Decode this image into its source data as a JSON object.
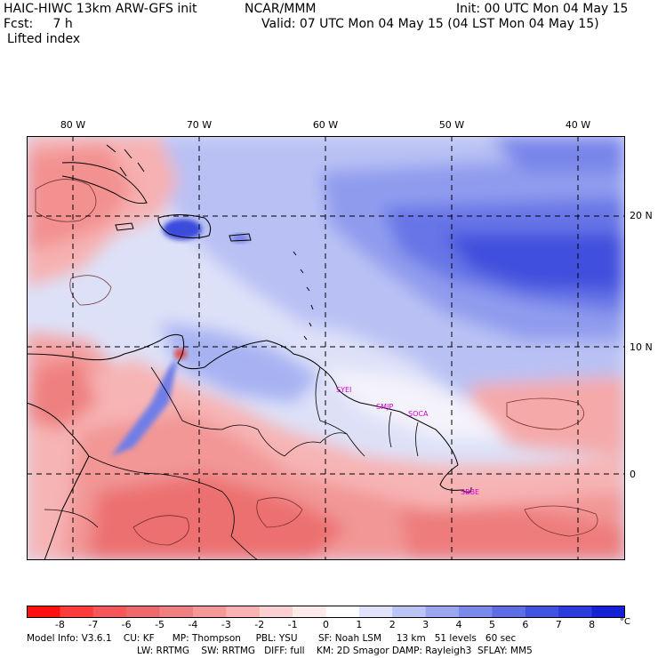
{
  "header": {
    "model": "HAIC-HIWC 13km ARW-GFS init",
    "org": "NCAR/MMM",
    "init": "Init: 00 UTC Mon 04 May 15",
    "fcst": "Fcst:     7 h",
    "valid": "Valid: 07 UTC Mon 04 May 15 (04 LST Mon 04 May 15)",
    "field": "Lifted index"
  },
  "map": {
    "lon_labels": [
      "80 W",
      "70 W",
      "60 W",
      "50 W",
      "40 W"
    ],
    "lat_labels": [
      "20 N",
      "10 N",
      "0"
    ],
    "stations": [
      "SYEI",
      "SMJP",
      "SOCA",
      "SBBE"
    ]
  },
  "colorbar": {
    "ticks": [
      "-8",
      "-7",
      "-6",
      "-5",
      "-4",
      "-3",
      "-2",
      "-1",
      "0",
      "1",
      "2",
      "3",
      "4",
      "5",
      "6",
      "7",
      "8"
    ],
    "unit": "°C",
    "colors": [
      "#ff1010",
      "#ff3c3c",
      "#f45858",
      "#ee6a6a",
      "#f07f7f",
      "#f49898",
      "#f8b2b2",
      "#fcd0d0",
      "#ffeaea",
      "#ffffff",
      "#dfe3fb",
      "#bcc4f5",
      "#9aa6f0",
      "#7b89ea",
      "#5d6ee5",
      "#4052e0",
      "#2a3ddb",
      "#1222d4"
    ]
  },
  "footer": {
    "line1": "Model Info: V3.6.1    CU: KF      MP: Thompson     PBL: YSU       SF: Noah LSM     13 km   51 levels   60 sec",
    "line2": "LW: RRTMG    SW: RRTMG   DIFF: full    KM: 2D Smagor DAMP: Rayleigh3  SFLAY: MM5"
  }
}
